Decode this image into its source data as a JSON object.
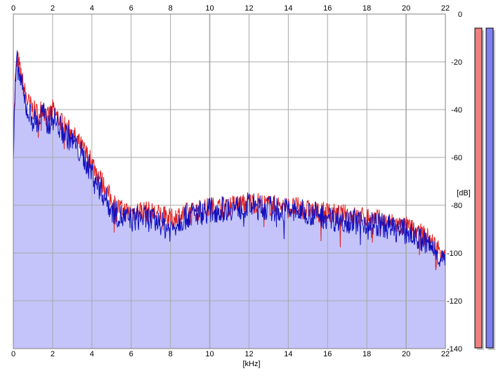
{
  "chart_data": {
    "type": "area",
    "xlabel": "[kHz]",
    "ylabel": "[dB]",
    "xlim": [
      0,
      22
    ],
    "ylim": [
      -140,
      0
    ],
    "x_ticks": [
      0,
      2,
      4,
      6,
      8,
      10,
      12,
      14,
      16,
      18,
      20,
      22
    ],
    "x_tick_labels": [
      "0",
      "2",
      "4",
      "6",
      "8",
      "10",
      "12",
      "14",
      "16",
      "18",
      "20",
      "22"
    ],
    "y_ticks": [
      0,
      -20,
      -40,
      -60,
      -80,
      -100,
      -120,
      -140
    ],
    "y_tick_labels": [
      "0",
      "-20",
      "-40",
      "-60",
      "-80",
      "-100",
      "-120",
      "-140"
    ],
    "grid": true,
    "x_axis_position": "top-and-bottom",
    "y_axis_position": "right",
    "colors": {
      "left_channel": "#e02020",
      "right_channel": "#1010c0",
      "fill": "#c4c4fa",
      "grid": "#a8a8a8",
      "left_meter": "#f08080",
      "right_meter": "#8080f0"
    },
    "series": [
      {
        "color": "red",
        "x": [
          0,
          0.1,
          0.2,
          0.3,
          0.5,
          0.7,
          1.0,
          1.3,
          1.5,
          1.7,
          2.0,
          2.5,
          3.0,
          3.5,
          4.0,
          4.5,
          5.0,
          5.5,
          6.0,
          6.5,
          7.0,
          7.5,
          8.0,
          8.5,
          9.0,
          9.5,
          10.0,
          10.5,
          11.0,
          11.5,
          12.0,
          12.5,
          13.0,
          13.5,
          14.0,
          14.5,
          15.0,
          15.5,
          16.0,
          16.5,
          17.0,
          17.5,
          18.0,
          18.5,
          19.0,
          19.5,
          20.0,
          20.5,
          21.0,
          21.5,
          22.0
        ],
        "values": [
          -52,
          -28,
          -18,
          -22,
          -30,
          -36,
          -40,
          -42,
          -38,
          -44,
          -40,
          -46,
          -50,
          -56,
          -62,
          -70,
          -78,
          -82,
          -83,
          -82,
          -83,
          -84,
          -86,
          -84,
          -83,
          -82,
          -81,
          -81,
          -80,
          -80,
          -79,
          -79,
          -80,
          -80,
          -81,
          -81,
          -82,
          -83,
          -83,
          -84,
          -84,
          -85,
          -85,
          -86,
          -87,
          -88,
          -89,
          -91,
          -93,
          -97,
          -101
        ]
      },
      {
        "color": "blue",
        "x": [
          0,
          0.1,
          0.2,
          0.3,
          0.5,
          0.7,
          1.0,
          1.3,
          1.5,
          1.7,
          2.0,
          2.5,
          3.0,
          3.5,
          4.0,
          4.5,
          5.0,
          5.5,
          6.0,
          6.5,
          7.0,
          7.5,
          8.0,
          8.5,
          9.0,
          9.5,
          10.0,
          10.5,
          11.0,
          11.5,
          12.0,
          12.5,
          13.0,
          13.5,
          14.0,
          14.5,
          15.0,
          15.5,
          16.0,
          16.5,
          17.0,
          17.5,
          18.0,
          18.5,
          19.0,
          19.5,
          20.0,
          20.5,
          21.0,
          21.5,
          22.0
        ],
        "values": [
          -60,
          -30,
          -20,
          -25,
          -33,
          -40,
          -44,
          -46,
          -40,
          -47,
          -43,
          -49,
          -53,
          -59,
          -66,
          -74,
          -82,
          -85,
          -86,
          -85,
          -86,
          -88,
          -90,
          -86,
          -84,
          -83,
          -82,
          -82,
          -81,
          -81,
          -80,
          -81,
          -81,
          -82,
          -82,
          -83,
          -83,
          -84,
          -85,
          -86,
          -86,
          -87,
          -87,
          -88,
          -89,
          -90,
          -91,
          -93,
          -96,
          -99,
          -104
        ]
      }
    ],
    "peak_meters": [
      {
        "channel": "left",
        "level_db": -6
      },
      {
        "channel": "right",
        "level_db": -6
      }
    ]
  }
}
